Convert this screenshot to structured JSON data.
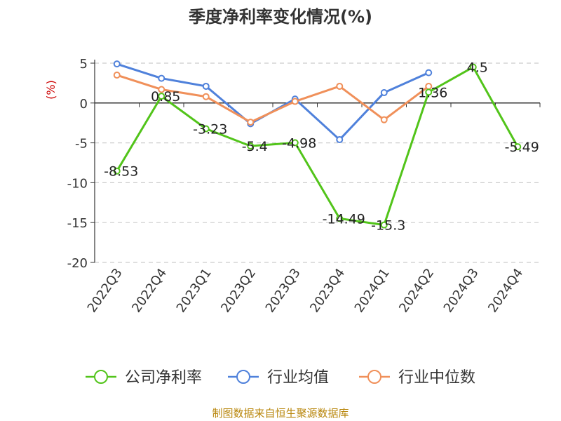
{
  "chart_data": {
    "type": "line",
    "title": "季度净利率变化情况(%)",
    "ylabel": "(%)",
    "ylim": [
      -20,
      5
    ],
    "yticks": [
      "5",
      "0",
      "-5",
      "-10",
      "-15",
      "-20"
    ],
    "grid": true,
    "legend_position": "bottom",
    "categories": [
      "2022Q3",
      "2022Q4",
      "2023Q1",
      "2023Q2",
      "2023Q3",
      "2023Q4",
      "2024Q1",
      "2024Q2",
      "2024Q3",
      "2024Q4"
    ],
    "series": [
      {
        "name": "公司净利率",
        "color": "#52c41a",
        "values": [
          -8.53,
          0.85,
          -3.23,
          -5.4,
          -4.98,
          -14.49,
          -15.3,
          1.36,
          4.5,
          -5.49
        ],
        "labels": [
          "-8.53",
          "0.85",
          "-3.23",
          "-5.4",
          "-4.98",
          "-14.49",
          "-15.3",
          "1.36",
          "4.5",
          "-5.49"
        ]
      },
      {
        "name": "行业均值",
        "color": "#4f81db",
        "values": [
          4.9,
          3.1,
          2.1,
          -2.6,
          0.5,
          -4.6,
          1.3,
          3.8,
          null,
          null
        ]
      },
      {
        "name": "行业中位数",
        "color": "#f0905a",
        "values": [
          3.5,
          1.7,
          0.8,
          -2.4,
          0.2,
          2.1,
          -2.1,
          2.1,
          null,
          null
        ]
      }
    ]
  },
  "source": "制图数据来自恒生聚源数据库"
}
